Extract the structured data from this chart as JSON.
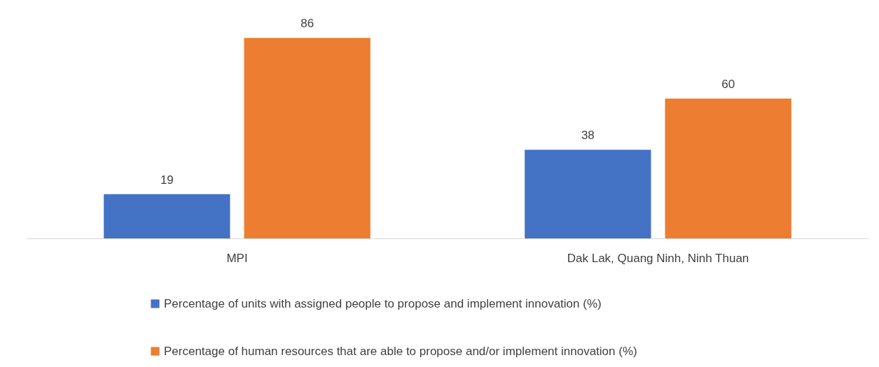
{
  "chart_data": {
    "type": "bar",
    "categories": [
      "MPI",
      "Dak Lak, Quang Ninh, Ninh Thuan"
    ],
    "series": [
      {
        "name": "Percentage of units with assigned people to propose and implement innovation (%)",
        "color": "#4472c4",
        "values": [
          19,
          38
        ]
      },
      {
        "name": "Percentage of human resources that are able to propose and/or implement innovation (%)",
        "color": "#ed7d31",
        "values": [
          86,
          60
        ]
      }
    ],
    "data_labels": true,
    "legend": "bottom"
  }
}
